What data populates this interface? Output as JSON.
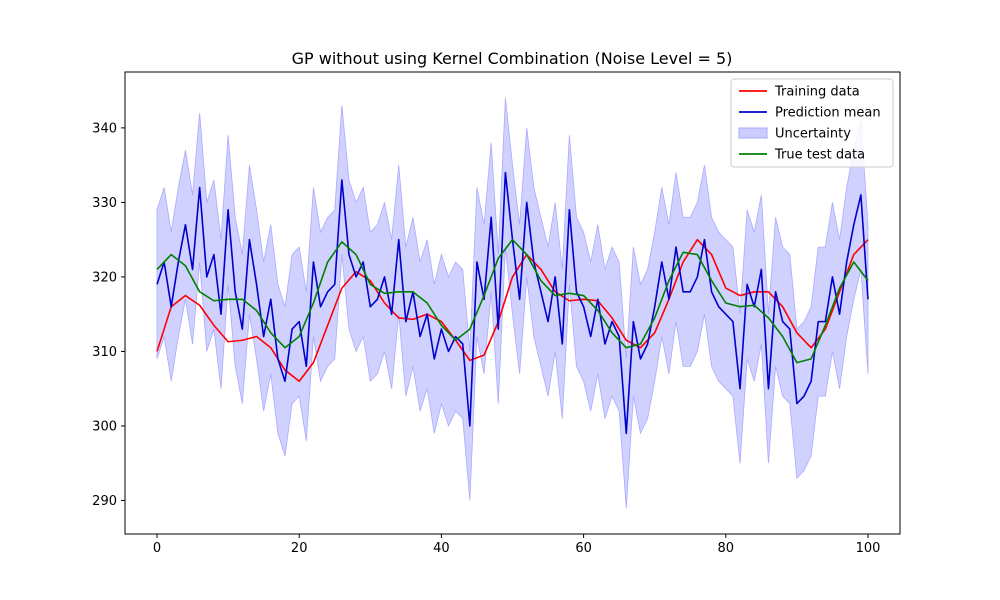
{
  "chart_data": {
    "type": "line",
    "title": "GP without using Kernel Combination (Noise Level = 5)",
    "xlabel": "",
    "ylabel": "",
    "xlim": [
      -4.5,
      104.5
    ],
    "ylim": [
      285.5,
      347.5
    ],
    "xticks": [
      0,
      20,
      40,
      60,
      80,
      100
    ],
    "yticks": [
      290,
      300,
      310,
      320,
      330,
      340
    ],
    "grid": false,
    "legend_position": "top-right",
    "colors": {
      "training": "#ff0000",
      "prediction": "#0000cc",
      "uncertainty": "#ccccff",
      "uncertainty_edge": "#aaaaff",
      "true_test": "#008000"
    },
    "series": [
      {
        "name": "Training data",
        "kind": "line",
        "x": [
          0,
          2,
          4,
          6,
          8,
          10,
          12,
          14,
          16,
          18,
          20,
          22,
          24,
          26,
          28,
          30,
          32,
          34,
          36,
          38,
          40,
          42,
          44,
          46,
          48,
          50,
          52,
          54,
          56,
          58,
          60,
          62,
          64,
          66,
          68,
          70,
          72,
          74,
          76,
          78,
          80,
          82,
          84,
          86,
          88,
          90,
          92,
          94,
          96,
          98,
          100
        ],
        "y": [
          310.0,
          316.0,
          317.5,
          316.2,
          313.5,
          311.3,
          311.5,
          312.0,
          310.5,
          307.5,
          306.0,
          308.5,
          313.5,
          318.5,
          320.7,
          319.5,
          316.5,
          314.5,
          314.3,
          315.0,
          314.0,
          311.5,
          308.8,
          309.5,
          314.0,
          320.0,
          323.0,
          321.0,
          318.0,
          316.8,
          317.0,
          316.8,
          314.5,
          311.5,
          310.5,
          312.5,
          317.0,
          322.0,
          325.0,
          323.0,
          318.5,
          317.5,
          318.0,
          318.0,
          316.0,
          312.5,
          310.5,
          313.0,
          318.0,
          323.0,
          325.0
        ]
      },
      {
        "name": "Prediction mean",
        "kind": "line",
        "x": [
          0,
          1,
          2,
          3,
          4,
          5,
          6,
          7,
          8,
          9,
          10,
          11,
          12,
          13,
          14,
          15,
          16,
          17,
          18,
          19,
          20,
          21,
          22,
          23,
          24,
          25,
          26,
          27,
          28,
          29,
          30,
          31,
          32,
          33,
          34,
          35,
          36,
          37,
          38,
          39,
          40,
          41,
          42,
          43,
          44,
          45,
          46,
          47,
          48,
          49,
          50,
          51,
          52,
          53,
          54,
          55,
          56,
          57,
          58,
          59,
          60,
          61,
          62,
          63,
          64,
          65,
          66,
          67,
          68,
          69,
          70,
          71,
          72,
          73,
          74,
          75,
          76,
          77,
          78,
          79,
          80,
          81,
          82,
          83,
          84,
          85,
          86,
          87,
          88,
          89,
          90,
          91,
          92,
          93,
          94,
          95,
          96,
          97,
          98,
          99,
          100
        ],
        "y": [
          319,
          322,
          316,
          322,
          327,
          321,
          332,
          320,
          323,
          315,
          329,
          318,
          313,
          325,
          319,
          312,
          317,
          309,
          306,
          313,
          314,
          308,
          322,
          316,
          318,
          319,
          333,
          323,
          320,
          322,
          316,
          317,
          320,
          315,
          325,
          314,
          318,
          312,
          315,
          309,
          313,
          310,
          312,
          311,
          300,
          322,
          317,
          328,
          313,
          334,
          325,
          317,
          330,
          322,
          318,
          314,
          320,
          311,
          329,
          318,
          316,
          312,
          317,
          311,
          314,
          312,
          299,
          314,
          309,
          311,
          316,
          322,
          317,
          324,
          318,
          318,
          320,
          325,
          318,
          316,
          315,
          314,
          305,
          319,
          316,
          321,
          305,
          318,
          314,
          313,
          303,
          304,
          306,
          314,
          314,
          320,
          315,
          322,
          327,
          331,
          317
        ]
      },
      {
        "name": "Uncertainty",
        "kind": "band",
        "x": [
          0,
          1,
          2,
          3,
          4,
          5,
          6,
          7,
          8,
          9,
          10,
          11,
          12,
          13,
          14,
          15,
          16,
          17,
          18,
          19,
          20,
          21,
          22,
          23,
          24,
          25,
          26,
          27,
          28,
          29,
          30,
          31,
          32,
          33,
          34,
          35,
          36,
          37,
          38,
          39,
          40,
          41,
          42,
          43,
          44,
          45,
          46,
          47,
          48,
          49,
          50,
          51,
          52,
          53,
          54,
          55,
          56,
          57,
          58,
          59,
          60,
          61,
          62,
          63,
          64,
          65,
          66,
          67,
          68,
          69,
          70,
          71,
          72,
          73,
          74,
          75,
          76,
          77,
          78,
          79,
          80,
          81,
          82,
          83,
          84,
          85,
          86,
          87,
          88,
          89,
          90,
          91,
          92,
          93,
          94,
          95,
          96,
          97,
          98,
          99,
          100
        ],
        "lower": [
          309,
          312,
          306,
          312,
          317,
          311,
          322,
          310,
          313,
          305,
          319,
          308,
          303,
          315,
          309,
          302,
          307,
          299,
          296,
          303,
          304,
          298,
          312,
          306,
          308,
          309,
          323,
          313,
          310,
          312,
          306,
          307,
          310,
          305,
          315,
          304,
          308,
          302,
          305,
          299,
          303,
          300,
          302,
          301,
          290,
          312,
          307,
          318,
          303,
          324,
          315,
          307,
          320,
          312,
          308,
          304,
          310,
          301,
          319,
          308,
          306,
          302,
          307,
          301,
          304,
          302,
          289,
          304,
          299,
          301,
          306,
          312,
          307,
          314,
          308,
          308,
          310,
          315,
          308,
          306,
          305,
          304,
          295,
          309,
          306,
          311,
          295,
          308,
          304,
          303,
          293,
          294,
          296,
          304,
          304,
          310,
          305,
          312,
          317,
          321,
          307
        ],
        "upper": [
          329,
          332,
          326,
          332,
          337,
          331,
          342,
          330,
          333,
          325,
          339,
          328,
          323,
          335,
          329,
          322,
          327,
          319,
          316,
          323,
          324,
          318,
          332,
          326,
          328,
          329,
          343,
          333,
          330,
          332,
          326,
          327,
          330,
          325,
          335,
          324,
          328,
          322,
          325,
          319,
          323,
          320,
          322,
          321,
          310,
          332,
          327,
          338,
          323,
          344,
          335,
          327,
          340,
          332,
          328,
          324,
          330,
          321,
          339,
          328,
          326,
          322,
          327,
          321,
          324,
          322,
          309,
          324,
          319,
          321,
          326,
          332,
          327,
          334,
          328,
          328,
          330,
          335,
          328,
          326,
          325,
          324,
          315,
          329,
          326,
          331,
          315,
          328,
          324,
          323,
          313,
          314,
          316,
          324,
          324,
          330,
          325,
          332,
          337,
          341,
          327
        ]
      },
      {
        "name": "True test data",
        "kind": "line",
        "x": [
          0,
          2,
          4,
          6,
          8,
          10,
          12,
          14,
          16,
          18,
          20,
          22,
          24,
          26,
          28,
          30,
          32,
          34,
          36,
          38,
          40,
          42,
          44,
          46,
          48,
          50,
          52,
          54,
          56,
          58,
          60,
          62,
          64,
          66,
          68,
          70,
          72,
          74,
          76,
          78,
          80,
          82,
          84,
          86,
          88,
          90,
          92,
          94,
          96,
          98,
          100
        ],
        "y": [
          321.0,
          323.0,
          321.5,
          318.0,
          316.8,
          317.0,
          317.0,
          315.5,
          312.5,
          310.5,
          312.0,
          316.5,
          322.0,
          324.7,
          323.0,
          319.0,
          317.8,
          318.0,
          318.0,
          316.5,
          313.5,
          311.5,
          313.0,
          317.5,
          322.5,
          325.0,
          323.0,
          319.5,
          317.5,
          317.8,
          317.5,
          315.5,
          312.5,
          310.5,
          311.0,
          314.5,
          319.5,
          323.3,
          323.0,
          319.5,
          316.5,
          316.0,
          316.2,
          314.5,
          312.0,
          308.5,
          309.0,
          313.5,
          318.5,
          322.0,
          319.5
        ]
      }
    ]
  }
}
